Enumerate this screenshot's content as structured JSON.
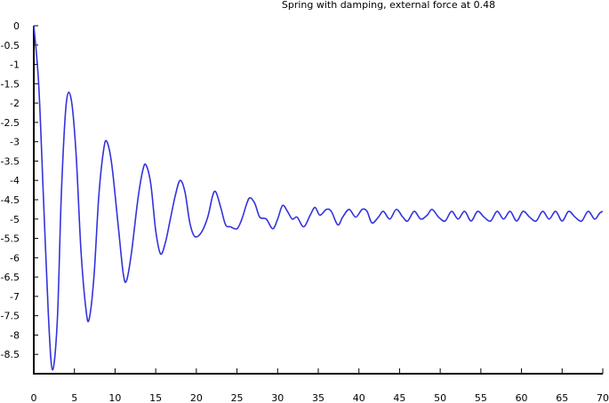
{
  "chart_data": {
    "type": "line",
    "title": "Spring with damping, external force at 0.48",
    "xlabel": "",
    "ylabel": "",
    "xlim": [
      0,
      70
    ],
    "ylim": [
      -9,
      0
    ],
    "x_ticks": [
      0,
      5,
      10,
      15,
      20,
      25,
      30,
      35,
      40,
      45,
      50,
      55,
      60,
      65,
      70
    ],
    "y_ticks": [
      0,
      -0.5,
      -1,
      -1.5,
      -2,
      -2.5,
      -3,
      -3.5,
      -4,
      -4.5,
      -5,
      -5.5,
      -6,
      -6.5,
      -7,
      -7.5,
      -8,
      -8.5
    ],
    "x_tick_labels": [
      "0",
      "5",
      "10",
      "15",
      "20",
      "25",
      "30",
      "35",
      "40",
      "45",
      "50",
      "55",
      "60",
      "65",
      "70"
    ],
    "y_tick_labels": [
      "0",
      "-0.5",
      "-1",
      "-1.5",
      "-2",
      "-2.5",
      "-3",
      "-3.5",
      "-4",
      "-4.5",
      "-5",
      "-5.5",
      "-6",
      "-6.5",
      "-7",
      "-7.5",
      "-8",
      "-8.5"
    ],
    "grid": false,
    "series": [
      {
        "color": "#3333dd",
        "points": [
          [
            0,
            0
          ],
          [
            0.6,
            -1.5
          ],
          [
            1.2,
            -4.5
          ],
          [
            1.8,
            -7.5
          ],
          [
            2.3,
            -8.9
          ],
          [
            2.9,
            -7.6
          ],
          [
            3.4,
            -4.3
          ],
          [
            4.0,
            -2.0
          ],
          [
            4.6,
            -1.9
          ],
          [
            5.2,
            -3.3
          ],
          [
            5.8,
            -5.8
          ],
          [
            6.4,
            -7.3
          ],
          [
            6.8,
            -7.6
          ],
          [
            7.4,
            -6.5
          ],
          [
            8.0,
            -4.4
          ],
          [
            8.6,
            -3.2
          ],
          [
            9.0,
            -3.0
          ],
          [
            9.6,
            -3.6
          ],
          [
            10.4,
            -5.2
          ],
          [
            11.0,
            -6.4
          ],
          [
            11.4,
            -6.6
          ],
          [
            12.0,
            -5.9
          ],
          [
            12.8,
            -4.5
          ],
          [
            13.4,
            -3.75
          ],
          [
            13.8,
            -3.6
          ],
          [
            14.4,
            -4.1
          ],
          [
            15.0,
            -5.3
          ],
          [
            15.6,
            -5.9
          ],
          [
            16.2,
            -5.6
          ],
          [
            16.8,
            -5.0
          ],
          [
            17.4,
            -4.4
          ],
          [
            18.0,
            -4.0
          ],
          [
            18.6,
            -4.3
          ],
          [
            19.2,
            -5.1
          ],
          [
            19.8,
            -5.45
          ],
          [
            20.6,
            -5.35
          ],
          [
            21.4,
            -4.95
          ],
          [
            22.0,
            -4.4
          ],
          [
            22.4,
            -4.3
          ],
          [
            23.0,
            -4.7
          ],
          [
            23.6,
            -5.15
          ],
          [
            24.2,
            -5.2
          ],
          [
            25.0,
            -5.25
          ],
          [
            25.6,
            -5.0
          ],
          [
            26.2,
            -4.6
          ],
          [
            26.6,
            -4.45
          ],
          [
            27.2,
            -4.6
          ],
          [
            27.8,
            -4.95
          ],
          [
            28.6,
            -5.0
          ],
          [
            29.4,
            -5.25
          ],
          [
            30.0,
            -5.0
          ],
          [
            30.6,
            -4.65
          ],
          [
            31.2,
            -4.8
          ],
          [
            31.8,
            -5.0
          ],
          [
            32.4,
            -4.95
          ],
          [
            33.2,
            -5.2
          ],
          [
            34.0,
            -4.9
          ],
          [
            34.6,
            -4.7
          ],
          [
            35.2,
            -4.9
          ],
          [
            36.0,
            -4.75
          ],
          [
            36.6,
            -4.8
          ],
          [
            37.4,
            -5.15
          ],
          [
            38.0,
            -4.95
          ],
          [
            38.8,
            -4.75
          ],
          [
            39.6,
            -4.95
          ],
          [
            40.4,
            -4.75
          ],
          [
            41.0,
            -4.8
          ],
          [
            41.6,
            -5.1
          ],
          [
            42.4,
            -4.95
          ],
          [
            43.0,
            -4.8
          ],
          [
            43.8,
            -5.0
          ],
          [
            44.6,
            -4.75
          ],
          [
            45.4,
            -4.95
          ],
          [
            46.0,
            -5.05
          ],
          [
            46.8,
            -4.8
          ],
          [
            47.6,
            -5.0
          ],
          [
            48.4,
            -4.9
          ],
          [
            49.0,
            -4.75
          ],
          [
            49.8,
            -4.95
          ],
          [
            50.6,
            -5.05
          ],
          [
            51.4,
            -4.8
          ],
          [
            52.2,
            -5.0
          ],
          [
            53.0,
            -4.8
          ],
          [
            53.8,
            -5.05
          ],
          [
            54.6,
            -4.8
          ],
          [
            55.4,
            -4.95
          ],
          [
            56.2,
            -5.05
          ],
          [
            57.0,
            -4.8
          ],
          [
            57.8,
            -5.0
          ],
          [
            58.6,
            -4.8
          ],
          [
            59.4,
            -5.05
          ],
          [
            60.2,
            -4.8
          ],
          [
            61.0,
            -4.95
          ],
          [
            61.8,
            -5.05
          ],
          [
            62.6,
            -4.8
          ],
          [
            63.4,
            -5.0
          ],
          [
            64.2,
            -4.8
          ],
          [
            65.0,
            -5.05
          ],
          [
            65.8,
            -4.8
          ],
          [
            66.6,
            -4.95
          ],
          [
            67.4,
            -5.05
          ],
          [
            68.2,
            -4.8
          ],
          [
            69.0,
            -5.0
          ],
          [
            69.6,
            -4.85
          ],
          [
            70.0,
            -4.8
          ]
        ]
      }
    ]
  }
}
